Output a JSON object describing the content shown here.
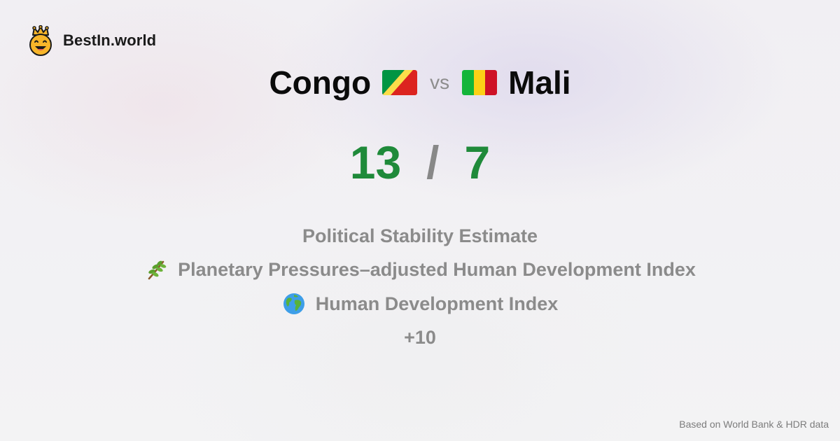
{
  "brand": {
    "name": "BestIn.world",
    "logo_icon": "crowned-smiley-icon"
  },
  "comparison": {
    "left": {
      "name": "Congo",
      "flag_icon": "congo-flag-icon"
    },
    "vs_label": "vs",
    "right": {
      "name": "Mali",
      "flag_icon": "mali-flag-icon"
    }
  },
  "score": {
    "left": "13",
    "separator": "/",
    "right": "7",
    "color": "#1f8a3a"
  },
  "metrics": [
    {
      "label": "Political Stability Estimate",
      "icon": ""
    },
    {
      "label": "Planetary Pressures–adjusted Human Development Index",
      "icon": "herb-icon"
    },
    {
      "label": "Human Development Index",
      "icon": "globe-icon"
    },
    {
      "label": "+10",
      "icon": ""
    }
  ],
  "footer": {
    "source": "Based on World Bank & HDR data"
  },
  "colors": {
    "background": "#f3f2f5",
    "text_muted": "#8b8b8b",
    "accent_green": "#1f8a3a"
  }
}
